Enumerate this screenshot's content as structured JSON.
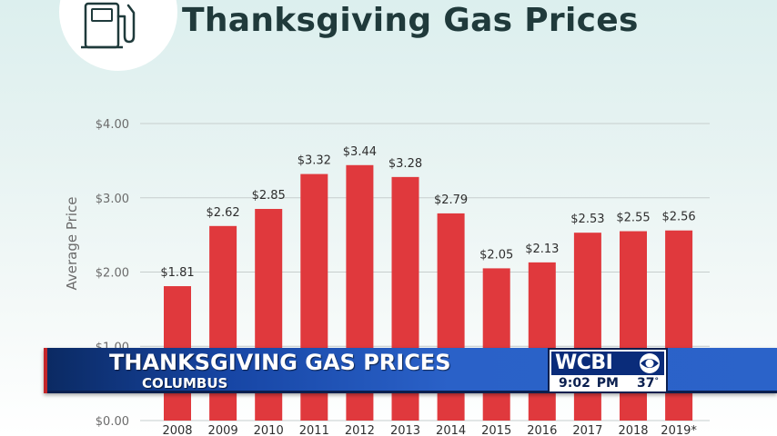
{
  "header": {
    "title": "Thanksgiving Gas Prices",
    "icon": "gas-pump-icon"
  },
  "chart_data": {
    "type": "bar",
    "title": "Thanksgiving Gas Prices",
    "ylabel": "Average Price",
    "xlabel": "",
    "categories": [
      "2008",
      "2009",
      "2010",
      "2011",
      "2012",
      "2013",
      "2014",
      "2015",
      "2016",
      "2017",
      "2018",
      "2019*"
    ],
    "values": [
      1.81,
      2.62,
      2.85,
      3.32,
      3.44,
      3.28,
      2.79,
      2.05,
      2.13,
      2.53,
      2.55,
      2.56
    ],
    "value_labels": [
      "$1.81",
      "$2.62",
      "$2.85",
      "$3.32",
      "$3.44",
      "$3.28",
      "$2.79",
      "$2.05",
      "$2.13",
      "$2.53",
      "$2.55",
      "$2.56"
    ],
    "ylim": [
      0,
      4
    ],
    "y_ticks": [
      0,
      1,
      2,
      3,
      4
    ],
    "y_tick_labels": [
      "$0.00",
      "$1.00",
      "$2.00",
      "$3.00",
      "$4.00"
    ],
    "grid": true,
    "bar_color": "#e0393d",
    "grid_color": "#c7cdcd",
    "text_color": "#2e2e2e",
    "axis_text_color": "#6b6b6b"
  },
  "lower_third": {
    "headline": "THANKSGIVING GAS PRICES",
    "subhead": "COLUMBUS",
    "station": "WCBI",
    "network_icon": "cbs-eye-icon",
    "time": "9:02 PM",
    "temperature": "37",
    "temperature_unit": "°"
  },
  "colors": {
    "title": "#203a3b",
    "banner_blue": "#2a61c8",
    "banner_dark": "#0b2a63",
    "banner_accent_red": "#c3262a"
  }
}
